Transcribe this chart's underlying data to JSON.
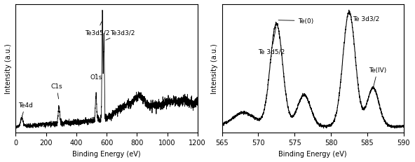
{
  "left_panel": {
    "xlabel": "Binding Energy (eV)",
    "ylabel": "Intensity (a.u.)",
    "xlim": [
      0,
      1200
    ],
    "xticks": [
      0,
      200,
      400,
      600,
      800,
      1000,
      1200
    ]
  },
  "right_panel": {
    "xlabel": "Binding Energy (eV)",
    "ylabel": "Intensity (a.u.)",
    "xlim": [
      565,
      590
    ],
    "xticks": [
      565,
      570,
      575,
      580,
      585,
      590
    ]
  },
  "line_color": "#000000",
  "background_color": "#ffffff",
  "font_size": 7
}
